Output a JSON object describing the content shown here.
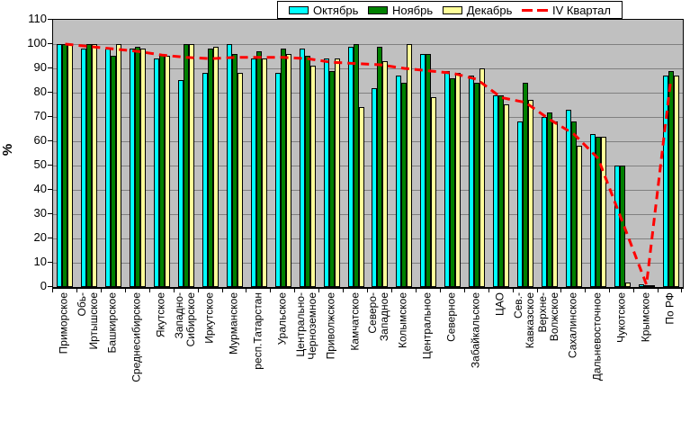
{
  "chart_data": {
    "type": "bar",
    "title": "",
    "ylabel": "%",
    "ylim": [
      0,
      110
    ],
    "yticks": [
      0,
      10,
      20,
      30,
      40,
      50,
      60,
      70,
      80,
      90,
      100,
      110
    ],
    "grid": true,
    "plot_bg": "#C0C0C0",
    "gridline_color": "#808080",
    "legend_position": "top",
    "categories": [
      "Приморское",
      "Обь-\nИртышское",
      "Башкирское",
      "Среднесибирское",
      "Якутское",
      "Западно-\nСибирское",
      "Иркутское",
      "Мурманское",
      "респ.Татарстан",
      "Уральское",
      "Центрально-\nЧерноземное",
      "Приволжское",
      "Камчатское",
      "Северо-\nЗападное",
      "Колымское",
      "Центральное",
      "Северное",
      "Забайкальское",
      "ЦАО",
      "Сев.-\nКавказское",
      "Верхне-\nВолжское",
      "Сахалинское",
      "Дальневосточное",
      "Чукотское",
      "Крымское",
      "По РФ"
    ],
    "series": [
      {
        "name": "Октябрь",
        "type": "bar",
        "color": "#00FFFF",
        "values": [
          100,
          98,
          98,
          98,
          94,
          85,
          88,
          100,
          94,
          88,
          98,
          94,
          99,
          82,
          87,
          96,
          89,
          87,
          79,
          68,
          70,
          73,
          63,
          50,
          1,
          87
        ]
      },
      {
        "name": "Ноябрь",
        "type": "bar",
        "color": "#008000",
        "values": [
          100,
          100,
          95,
          99,
          96,
          100,
          98,
          96,
          97,
          98,
          95,
          89,
          100,
          99,
          84,
          96,
          86,
          84,
          79,
          84,
          72,
          68,
          62,
          50,
          0.5,
          89
        ]
      },
      {
        "name": "Декабрь",
        "type": "bar",
        "color": "#FFFF99",
        "values": [
          100,
          100,
          100,
          98,
          95,
          100,
          99,
          88,
          94,
          96,
          91,
          94,
          74,
          93,
          100,
          78,
          88,
          90,
          75,
          77,
          68,
          58,
          62,
          2,
          0.5,
          87
        ]
      },
      {
        "name": "IV Квартал",
        "type": "line",
        "color": "#FF0000",
        "dashed": true,
        "values": [
          100,
          99,
          98,
          97,
          95.5,
          94.5,
          94,
          94.5,
          94.5,
          94.5,
          94,
          92.5,
          92,
          91.5,
          90,
          89,
          88,
          85.5,
          78,
          76,
          69,
          63,
          53,
          27,
          1,
          85
        ]
      }
    ]
  }
}
